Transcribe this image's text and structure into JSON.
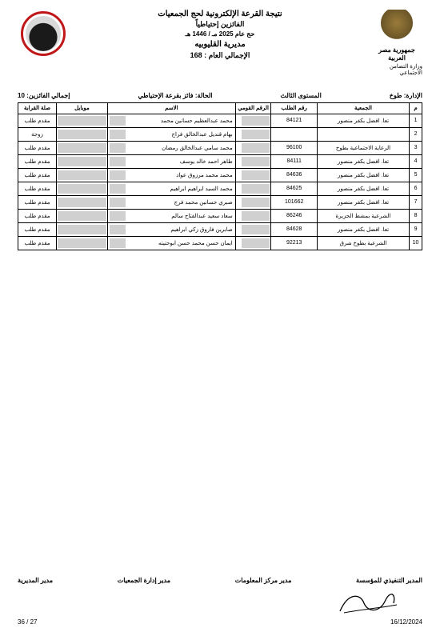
{
  "header": {
    "title1": "نتيجة القرعة الإلكترونية لحج الجمعيات",
    "title2": "الفائزين إحتياطياً",
    "title3": "حج عام 2025 مـ / 1446 هـ",
    "directorate": "مديرية القليوبيه",
    "total_label": "الإجمالي العام :",
    "total_value": "168",
    "country": "جمهورية مصر العربية",
    "ministry": "وزارة التضامن الاجتماعي"
  },
  "meta": {
    "admin_label": "الإدارة:",
    "admin_value": "طوخ",
    "level_label": "المستوى الثالث",
    "status_label": "الحالة:",
    "status_value": "فائز بقرعة الإحتياطي",
    "winners_label": "إجمالي الفائزين:",
    "winners_value": "10"
  },
  "columns": {
    "idx": "م",
    "association": "الجمعية",
    "request_no": "رقم الطلب",
    "national_id": "الرقم القومي",
    "name": "الاسم",
    "mobile": "موبايل",
    "relation": "صلة القرابة"
  },
  "rows": [
    {
      "idx": "1",
      "assoc": "تعا. افضل بكفر منصور",
      "req": "84121",
      "nid_suffix": "",
      "name": "محمد عبدالعظيم حسانين محمد",
      "rel": "مقدم طلب"
    },
    {
      "idx": "2",
      "assoc": "",
      "req": "",
      "nid_suffix": "",
      "name": "بهام قنديل عبدالخالق فراج",
      "rel": "زوجة"
    },
    {
      "idx": "3",
      "assoc": "الرعاية الاجتماعية بطوخ",
      "req": "96100",
      "nid_suffix": "",
      "name": "محمد سامي عبدالخالق رمضان",
      "rel": "مقدم طلب"
    },
    {
      "idx": "4",
      "assoc": "تعا. افضل بكفر منصور",
      "req": "84111",
      "nid_suffix": "",
      "name": "طاهر احمد خالد يوسف",
      "rel": "مقدم طلب"
    },
    {
      "idx": "5",
      "assoc": "تعا. افضل بكفر منصور",
      "req": "84636",
      "nid_suffix": "",
      "name": "محمد محمد مرزوق عواد",
      "rel": "مقدم طلب"
    },
    {
      "idx": "6",
      "assoc": "تعا. افضل بكفر منصور",
      "req": "84625",
      "nid_suffix": "",
      "name": "محمد السيد ابراهيم ابراهيم",
      "rel": "مقدم طلب"
    },
    {
      "idx": "7",
      "assoc": "تعا. افضل بكفر منصور",
      "req": "101662",
      "nid_suffix": "",
      "name": "صبري حسانين محمد فرج",
      "rel": "مقدم طلب"
    },
    {
      "idx": "8",
      "assoc": "الشرعية بمشط الجزيرة",
      "req": "86246",
      "nid_suffix": "",
      "name": "سعاد سعيد عبدالفتاح سالم",
      "rel": "مقدم طلب"
    },
    {
      "idx": "9",
      "assoc": "تعا. افضل بكفر منصور",
      "req": "84628",
      "nid_suffix": "",
      "name": "صابرين فاروق زكي ابراهيم",
      "rel": "مقدم طلب"
    },
    {
      "idx": "10",
      "assoc": "الشرعية بطوخ شرق",
      "req": "92213",
      "nid_suffix": "",
      "name": "ايمان حسن محمد حسن ابوحتيته",
      "rel": "مقدم طلب"
    }
  ],
  "signatures": {
    "s1": "المدير التنفيذي للمؤسسة",
    "s2": "مدير مركز المعلومات",
    "s3": "مدير إدارة الجمعيات",
    "s4": "مدير المديرية"
  },
  "footer": {
    "date": "16/12/2024",
    "page_current": "27",
    "page_sep": "/",
    "page_total": "36"
  },
  "style": {
    "redaction_color": "#d0d0d0",
    "border_color": "#000000",
    "badge_ring": "#c01818"
  }
}
